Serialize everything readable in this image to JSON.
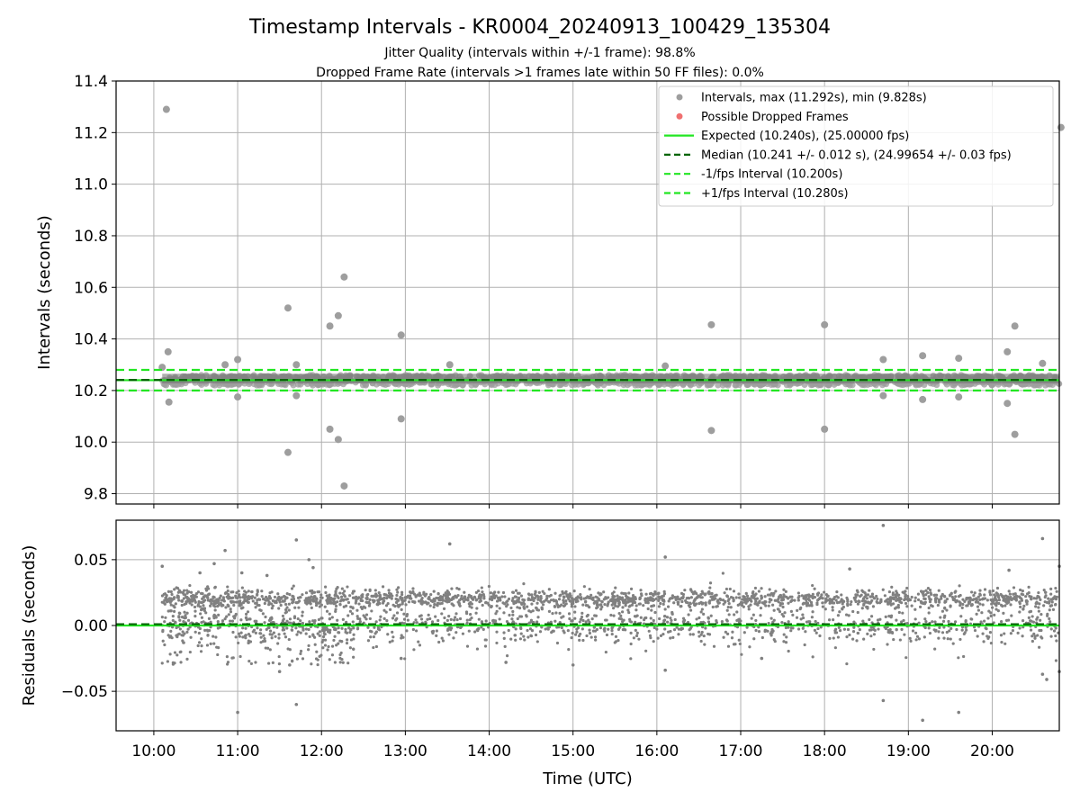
{
  "title": "Timestamp Intervals - KR0004_20240913_100429_135304",
  "subtitle1": "Jitter Quality (intervals within +/-1 frame): 98.8%",
  "subtitle2": "Dropped Frame Rate (intervals >1 frames late within 50 FF files): 0.0%",
  "colors": {
    "points": "#808080",
    "points_top": "#9e9e9e",
    "dropped": "#f07070",
    "expected": "#22e622",
    "median": "#006400",
    "fps_band": "#22e622",
    "grid": "#b0b0b0"
  },
  "chart_data": [
    {
      "type": "scatter",
      "panel": "intervals",
      "ylabel": "Intervals (seconds)",
      "ylim": [
        9.76,
        11.4
      ],
      "yticks": [
        9.8,
        10.0,
        10.2,
        10.4,
        10.6,
        10.8,
        11.0,
        11.2,
        11.4
      ],
      "ytick_labels": [
        "9.8",
        "10.0",
        "10.2",
        "10.4",
        "10.6",
        "10.8",
        "11.0",
        "11.2",
        "11.4"
      ],
      "grid": true,
      "legend_position": "top-right",
      "legend": [
        {
          "label": "Intervals, max (11.292s), min (9.828s)",
          "kind": "marker",
          "color": "#9e9e9e"
        },
        {
          "label": "Possible Dropped Frames",
          "kind": "marker",
          "color": "#f07070"
        },
        {
          "label": "Expected (10.240s), (25.00000 fps)",
          "kind": "line",
          "color": "#22e622",
          "dash": "solid"
        },
        {
          "label": "Median (10.241 +/- 0.012 s), (24.99654 +/- 0.03 fps)",
          "kind": "line",
          "color": "#006400",
          "dash": "dashed"
        },
        {
          "label": "-1/fps Interval (10.200s)",
          "kind": "line",
          "color": "#22e622",
          "dash": "dashed"
        },
        {
          "label": "+1/fps Interval (10.280s)",
          "kind": "line",
          "color": "#22e622",
          "dash": "dashed"
        }
      ],
      "hlines": [
        {
          "y": 10.24,
          "color": "#22e622",
          "dash": "solid"
        },
        {
          "y": 10.241,
          "color": "#006400",
          "dash": "dashed"
        },
        {
          "y": 10.2,
          "color": "#22e622",
          "dash": "dashed"
        },
        {
          "y": 10.28,
          "color": "#22e622",
          "dash": "dashed"
        }
      ],
      "dense_band": {
        "x_start": 10.1,
        "x_end": 20.8,
        "values": [
          10.22,
          10.26
        ]
      },
      "outliers": [
        [
          10.15,
          11.29
        ],
        [
          10.17,
          10.35
        ],
        [
          10.18,
          10.155
        ],
        [
          10.1,
          10.29
        ],
        [
          10.85,
          10.3
        ],
        [
          11.0,
          10.32
        ],
        [
          11.0,
          10.175
        ],
        [
          11.6,
          10.52
        ],
        [
          11.6,
          9.96
        ],
        [
          11.7,
          10.3
        ],
        [
          11.7,
          10.18
        ],
        [
          12.1,
          10.45
        ],
        [
          12.1,
          10.05
        ],
        [
          12.2,
          10.49
        ],
        [
          12.2,
          10.01
        ],
        [
          12.27,
          10.64
        ],
        [
          12.27,
          9.83
        ],
        [
          12.95,
          10.415
        ],
        [
          12.95,
          10.09
        ],
        [
          13.53,
          10.3
        ],
        [
          16.1,
          10.295
        ],
        [
          16.65,
          10.455
        ],
        [
          16.65,
          10.045
        ],
        [
          18.0,
          10.455
        ],
        [
          18.0,
          10.05
        ],
        [
          18.7,
          10.32
        ],
        [
          18.7,
          10.18
        ],
        [
          19.17,
          10.335
        ],
        [
          19.17,
          10.165
        ],
        [
          19.6,
          10.325
        ],
        [
          19.6,
          10.175
        ],
        [
          20.18,
          10.35
        ],
        [
          20.18,
          10.15
        ],
        [
          20.27,
          10.45
        ],
        [
          20.27,
          10.03
        ],
        [
          20.6,
          10.305
        ],
        [
          20.82,
          11.22
        ]
      ]
    },
    {
      "type": "scatter",
      "panel": "residuals",
      "xlabel": "Time (UTC)",
      "ylabel": "Residuals (seconds)",
      "xlim": [
        9.55,
        20.8
      ],
      "xticks": [
        10,
        11,
        12,
        13,
        14,
        15,
        16,
        17,
        18,
        19,
        20
      ],
      "xtick_labels": [
        "10:00",
        "11:00",
        "12:00",
        "13:00",
        "14:00",
        "15:00",
        "16:00",
        "17:00",
        "18:00",
        "19:00",
        "20:00"
      ],
      "ylim": [
        -0.08,
        0.08
      ],
      "yticks": [
        -0.05,
        0.0,
        0.05
      ],
      "ytick_labels": [
        "−0.05",
        "0.00",
        "0.05"
      ],
      "grid": true,
      "hlines": [
        {
          "y": 0.0,
          "color": "#22e622",
          "dash": "solid"
        },
        {
          "y": 0.001,
          "color": "#006400",
          "dash": "dashed"
        }
      ],
      "clusters": [
        {
          "center": 0.02,
          "spread": 0.0035
        },
        {
          "center": 0.0,
          "spread": 0.006
        }
      ],
      "outliers": [
        [
          10.1,
          0.045
        ],
        [
          10.55,
          0.04
        ],
        [
          10.72,
          0.047
        ],
        [
          10.85,
          0.057
        ],
        [
          11.0,
          -0.066
        ],
        [
          11.05,
          0.04
        ],
        [
          11.35,
          0.038
        ],
        [
          11.5,
          -0.035
        ],
        [
          11.62,
          -0.03
        ],
        [
          11.7,
          0.065
        ],
        [
          11.7,
          -0.06
        ],
        [
          11.85,
          0.05
        ],
        [
          11.9,
          0.044
        ],
        [
          12.95,
          -0.025
        ],
        [
          13.53,
          0.062
        ],
        [
          14.2,
          -0.028
        ],
        [
          15.0,
          -0.03
        ],
        [
          16.1,
          0.052
        ],
        [
          16.1,
          -0.034
        ],
        [
          17.25,
          -0.025
        ],
        [
          18.3,
          0.043
        ],
        [
          18.7,
          0.076
        ],
        [
          18.7,
          -0.057
        ],
        [
          19.17,
          -0.072
        ],
        [
          19.6,
          -0.066
        ],
        [
          20.2,
          0.042
        ],
        [
          20.6,
          0.066
        ],
        [
          20.6,
          -0.037
        ],
        [
          20.65,
          -0.041
        ],
        [
          20.8,
          0.045
        ],
        [
          20.8,
          -0.035
        ]
      ]
    }
  ]
}
